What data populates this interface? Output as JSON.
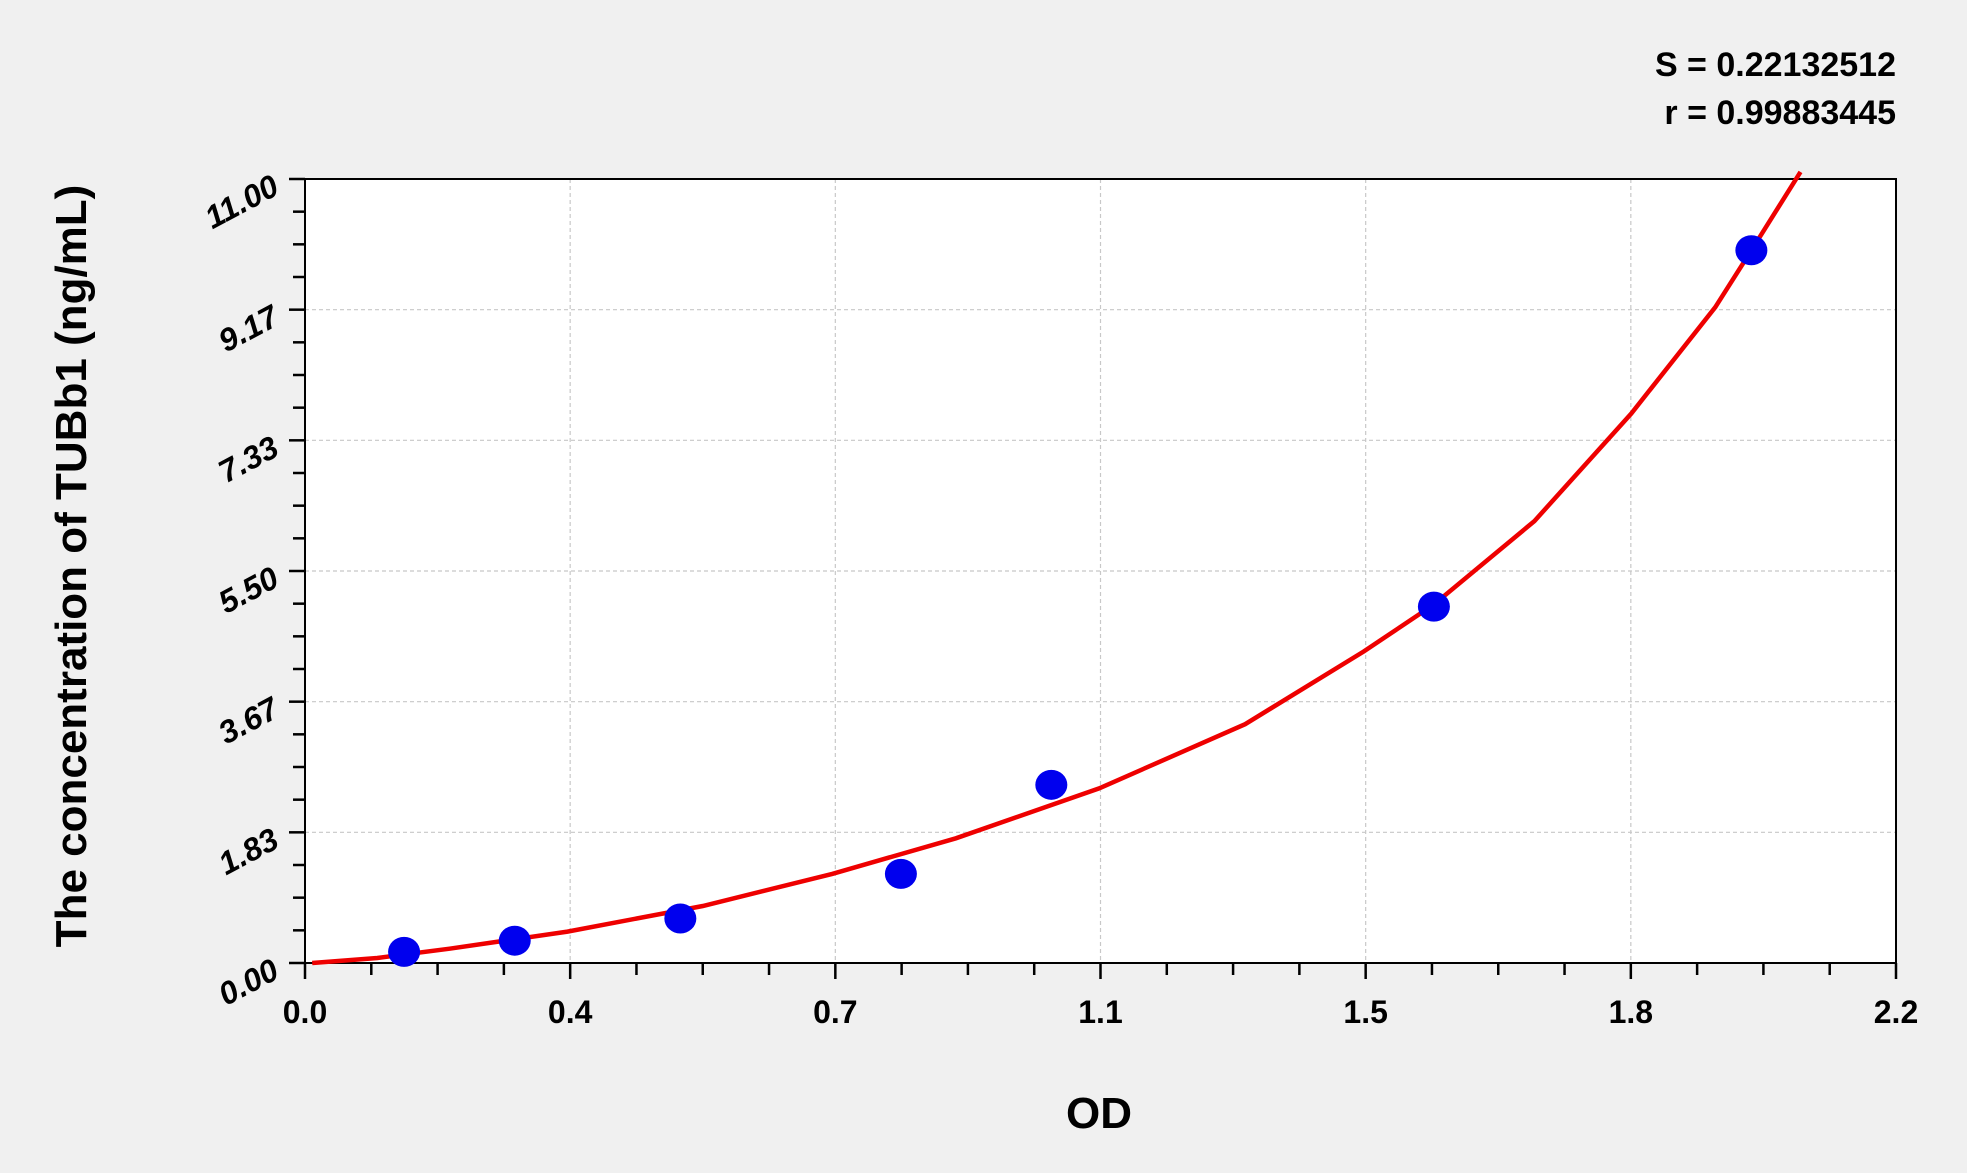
{
  "chart_data": {
    "type": "scatter",
    "title": "",
    "xlabel": "OD",
    "ylabel": "The concentration of TUBb1 (ng/mL)",
    "xlim": [
      0,
      2.2
    ],
    "ylim": [
      0,
      11
    ],
    "x_tick_labels": [
      "0.0",
      "0.4",
      "0.7",
      "1.1",
      "1.5",
      "1.8",
      "2.2"
    ],
    "y_tick_labels": [
      "0.00",
      "1.83",
      "3.67",
      "5.50",
      "7.33",
      "9.17",
      "11.00"
    ],
    "grid": true,
    "annotations": [
      "S = 0.22132512",
      "r = 0.99883445"
    ],
    "points": {
      "color": "#0000ee",
      "x": [
        0.137,
        0.29,
        0.519,
        0.824,
        1.032,
        1.561,
        2.0
      ],
      "y": [
        0.156,
        0.313,
        0.625,
        1.25,
        2.5,
        5.0,
        10.0
      ]
    },
    "fit_curve": {
      "color": "#ee0000",
      "x": [
        0.01,
        0.1,
        0.2,
        0.363,
        0.55,
        0.729,
        0.9,
        1.098,
        1.3,
        1.464,
        1.561,
        1.7,
        1.834,
        1.95,
        2.0,
        2.068
      ],
      "y": [
        0.0,
        0.07,
        0.2,
        0.44,
        0.8,
        1.25,
        1.75,
        2.45,
        3.35,
        4.37,
        5.03,
        6.2,
        7.71,
        9.2,
        10.0,
        11.1
      ]
    }
  }
}
